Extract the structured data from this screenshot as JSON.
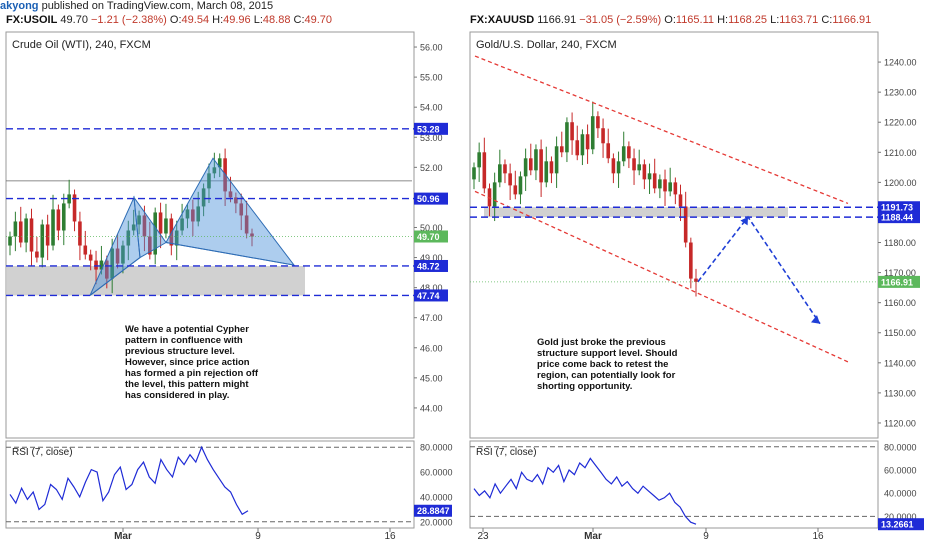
{
  "header": {
    "user": "akyong",
    "published_text": " published on TradingView.com, March 08, 2015"
  },
  "tickers": [
    {
      "symbol": "FX:USOIL",
      "price": "49.70",
      "change": "−1.21 (−2.38%)",
      "o_label": "O:",
      "o": "49.54",
      "h_label": "H:",
      "h": "49.96",
      "l_label": "L:",
      "l": "48.88",
      "c_label": "C:",
      "c": "49.70"
    },
    {
      "symbol": "FX:XAUUSD",
      "price": "1166.91",
      "change": "−31.05 (−2.59%)",
      "o_label": "O:",
      "o": "1165.11",
      "h_label": "H:",
      "h": "1168.25",
      "l_label": "L:",
      "l": "1163.71",
      "c_label": "C:",
      "c": "1166.91"
    }
  ],
  "colors": {
    "up": "#2e7d32",
    "down": "#c62828",
    "grid_line": "#1f2bd6",
    "trend": "#e53935",
    "zone": "#c9c9c9",
    "pattern": "#4a90d9",
    "rsi": "#1f2bd6",
    "price_tag": "#5cb85c"
  },
  "chart_data": [
    {
      "type": "candlestick",
      "title": "Crude Oil (WTI), 240, FXCM",
      "ylim": [
        43.0,
        56.5
      ],
      "y_ticks": [
        "56.00",
        "55.00",
        "54.00",
        "53.00",
        "52.00",
        "51.00",
        "50.00",
        "49.00",
        "48.00",
        "47.00",
        "46.00",
        "45.00",
        "44.00"
      ],
      "x_ticks": [
        "Mar",
        "9",
        "16"
      ],
      "horizontal_levels": [
        {
          "value": 53.28,
          "label": "53.28",
          "style": "dashed"
        },
        {
          "value": 50.96,
          "label": "50.96",
          "style": "dashed"
        },
        {
          "value": 48.72,
          "label": "48.72",
          "style": "dashed"
        },
        {
          "value": 47.74,
          "label": "47.74",
          "style": "dashed"
        }
      ],
      "thin_level": 51.55,
      "last_price": {
        "value": 49.7,
        "label": "49.70"
      },
      "support_zone": [
        47.74,
        48.72
      ],
      "close": [
        49.7,
        50.2,
        49.5,
        50.3,
        49.2,
        49.0,
        50.1,
        49.4,
        50.6,
        49.9,
        50.8,
        51.1,
        50.2,
        49.4,
        49.1,
        48.9,
        48.6,
        48.9,
        48.3,
        49.3,
        48.8,
        49.4,
        49.9,
        50.1,
        50.4,
        49.7,
        49.1,
        50.5,
        49.8,
        50.3,
        49.4,
        49.9,
        50.3,
        50.6,
        50.2,
        50.7,
        51.3,
        51.8,
        52.0,
        52.3,
        51.2,
        51.0,
        50.8,
        50.4,
        49.8,
        49.7
      ],
      "annotation": [
        "We have a potential Cypher",
        "pattern in confluence with",
        "previous structure level.",
        "However, since price action",
        "has formed a pin rejection off",
        "the level, this pattern might",
        "has considered in play."
      ],
      "rsi": {
        "label": "RSI (7, close)",
        "ticks": [
          "80.0000",
          "60.0000",
          "40.0000",
          "20.0000"
        ],
        "ylim": [
          15,
          85
        ],
        "last_label": "28.8847",
        "values": [
          42,
          35,
          47,
          38,
          44,
          30,
          34,
          50,
          46,
          38,
          55,
          48,
          40,
          52,
          62,
          60,
          37,
          44,
          58,
          64,
          46,
          50,
          62,
          68,
          56,
          51,
          70,
          62,
          56,
          72,
          66,
          74,
          68,
          80,
          70,
          62,
          55,
          48,
          44,
          34,
          26,
          28.88
        ]
      }
    },
    {
      "type": "candlestick",
      "title": "Gold/U.S. Dollar, 240, FXCM",
      "ylim": [
        1115,
        1250
      ],
      "y_ticks": [
        "1240.00",
        "1230.00",
        "1220.00",
        "1210.00",
        "1200.00",
        "1190.00",
        "1180.00",
        "1170.00",
        "1160.00",
        "1150.00",
        "1140.00",
        "1130.00",
        "1120.00"
      ],
      "x_ticks": [
        "23",
        "Mar",
        "9",
        "16"
      ],
      "horizontal_levels": [
        {
          "value": 1191.73,
          "label": "1191.73",
          "style": "dashed"
        },
        {
          "value": 1188.44,
          "label": "1188.44",
          "style": "dashed"
        }
      ],
      "last_price": {
        "value": 1166.91,
        "label": "1166.91"
      },
      "support_zone": [
        1188.44,
        1191.73
      ],
      "close": [
        1205,
        1210,
        1198,
        1192,
        1200,
        1206,
        1203,
        1199,
        1196,
        1202,
        1208,
        1204,
        1211,
        1200,
        1207,
        1203,
        1212,
        1210,
        1220,
        1214,
        1209,
        1216,
        1211,
        1222,
        1218,
        1213,
        1208,
        1203,
        1207,
        1212,
        1208,
        1204,
        1206,
        1201,
        1203,
        1198,
        1201,
        1197,
        1200,
        1196,
        1192,
        1180,
        1168,
        1166.91
      ],
      "annotation": [
        "Gold just broke the previous",
        "structure support level. Should",
        "price come back to retest the",
        "region, can potentially look for",
        "shorting opportunity."
      ],
      "rsi": {
        "label": "RSI (7, close)",
        "ticks": [
          "80.0000",
          "60.0000",
          "40.0000",
          "20.0000"
        ],
        "ylim": [
          10,
          85
        ],
        "last_label": "13.2661",
        "values": [
          44,
          38,
          42,
          36,
          48,
          40,
          46,
          52,
          44,
          58,
          52,
          50,
          56,
          48,
          62,
          58,
          64,
          50,
          60,
          56,
          66,
          62,
          70,
          64,
          58,
          52,
          48,
          54,
          46,
          50,
          44,
          40,
          46,
          42,
          38,
          34,
          36,
          40,
          32,
          28,
          20,
          15,
          13.27
        ]
      }
    }
  ]
}
